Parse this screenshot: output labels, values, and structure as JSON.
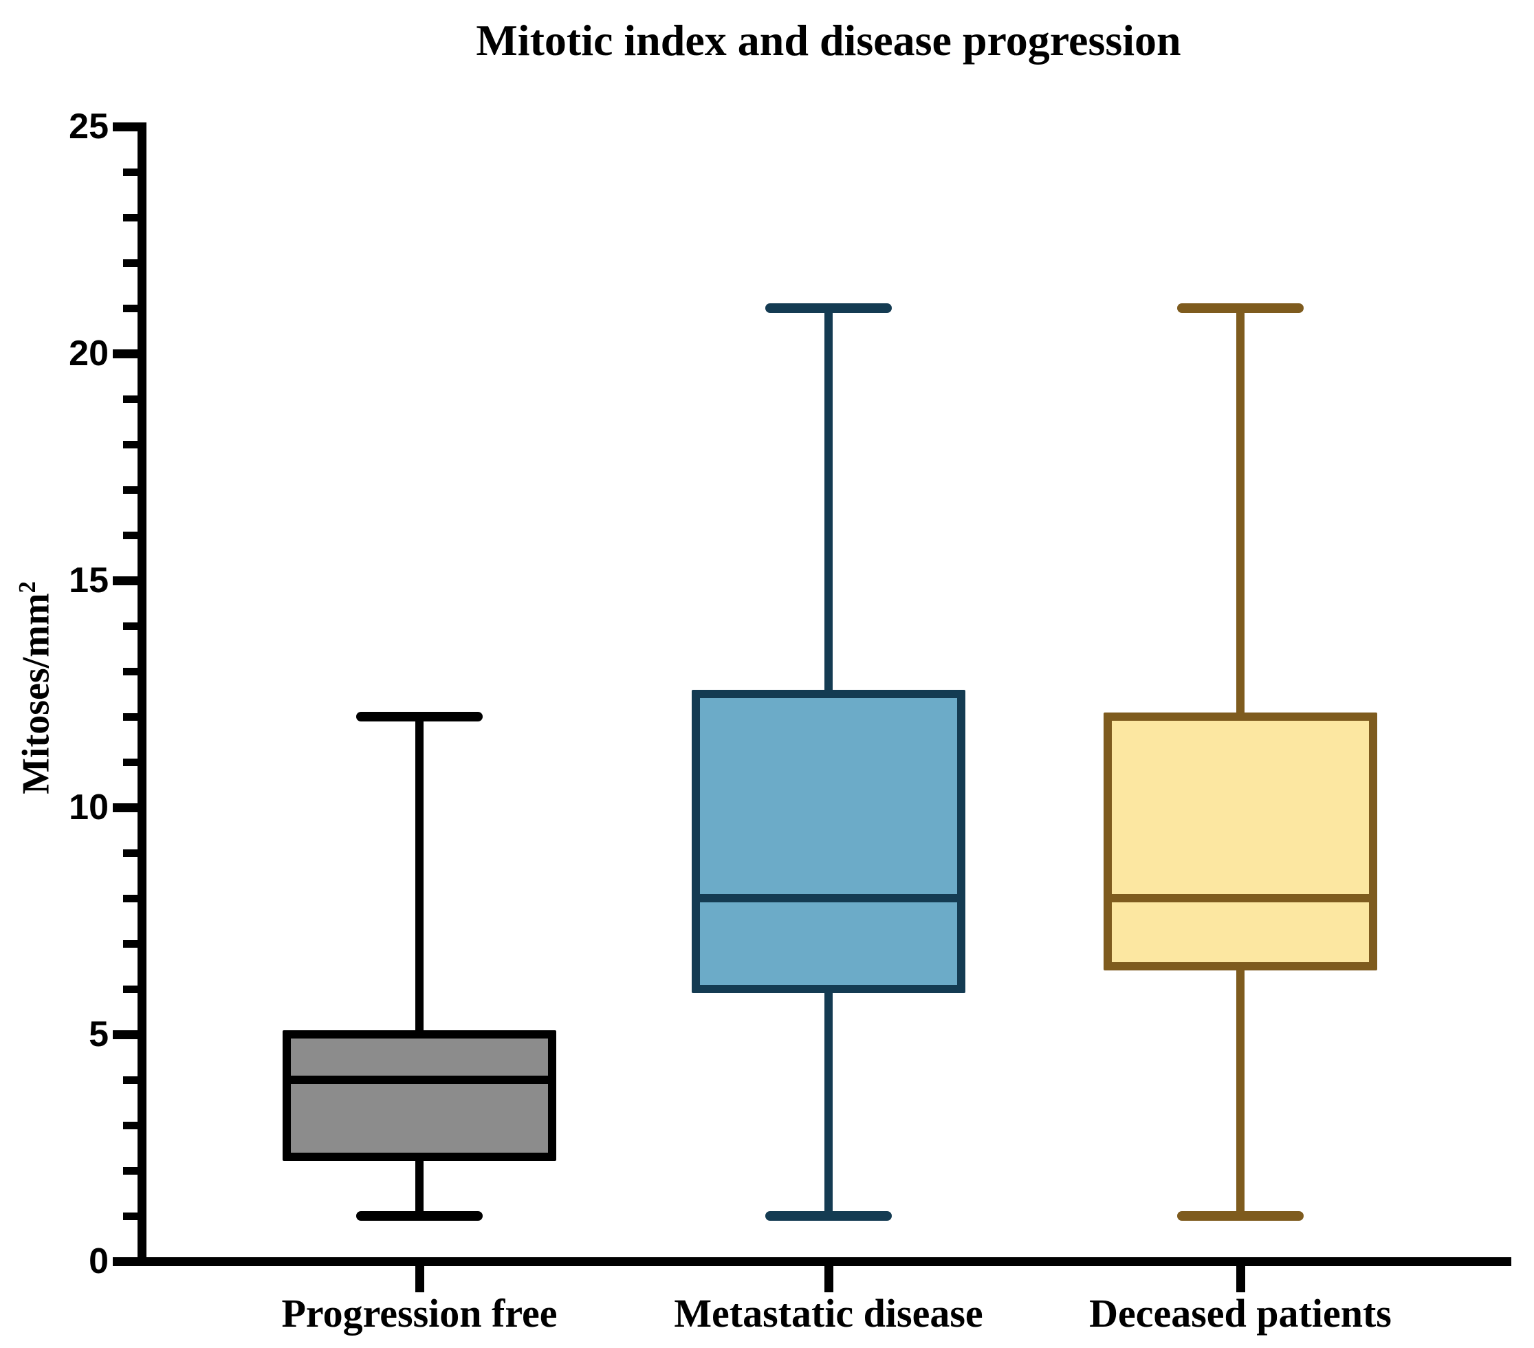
{
  "title": "Mitotic index and disease progression",
  "y_axis": {
    "label_base": "Mitoses/mm",
    "label_sup": "2",
    "min": 0,
    "max": 25,
    "major_ticks": [
      0,
      5,
      10,
      15,
      20,
      25
    ],
    "minor_tick_step": 1
  },
  "chart_data": {
    "type": "boxplot",
    "title": "Mitotic index and disease progression",
    "xlabel": "",
    "ylabel": "Mitoses/mm2",
    "ylim": [
      0,
      25
    ],
    "grid": false,
    "legend": false,
    "categories": [
      "Progression free",
      "Metastatic disease",
      "Deceased patients"
    ],
    "series": [
      {
        "name": "Progression free",
        "min": 1,
        "q1": 2.3,
        "median": 4,
        "q3": 5,
        "max": 12,
        "fill": "#8C8C8C",
        "stroke": "#000000"
      },
      {
        "name": "Metastatic disease",
        "min": 1,
        "q1": 6,
        "median": 8,
        "q3": 12.5,
        "max": 21,
        "fill": "#6CABC8",
        "stroke": "#143B52"
      },
      {
        "name": "Deceased patients",
        "min": 1,
        "q1": 6.5,
        "median": 8,
        "q3": 12,
        "max": 21,
        "fill": "#FCE7A1",
        "stroke": "#7E5B1E"
      }
    ]
  }
}
